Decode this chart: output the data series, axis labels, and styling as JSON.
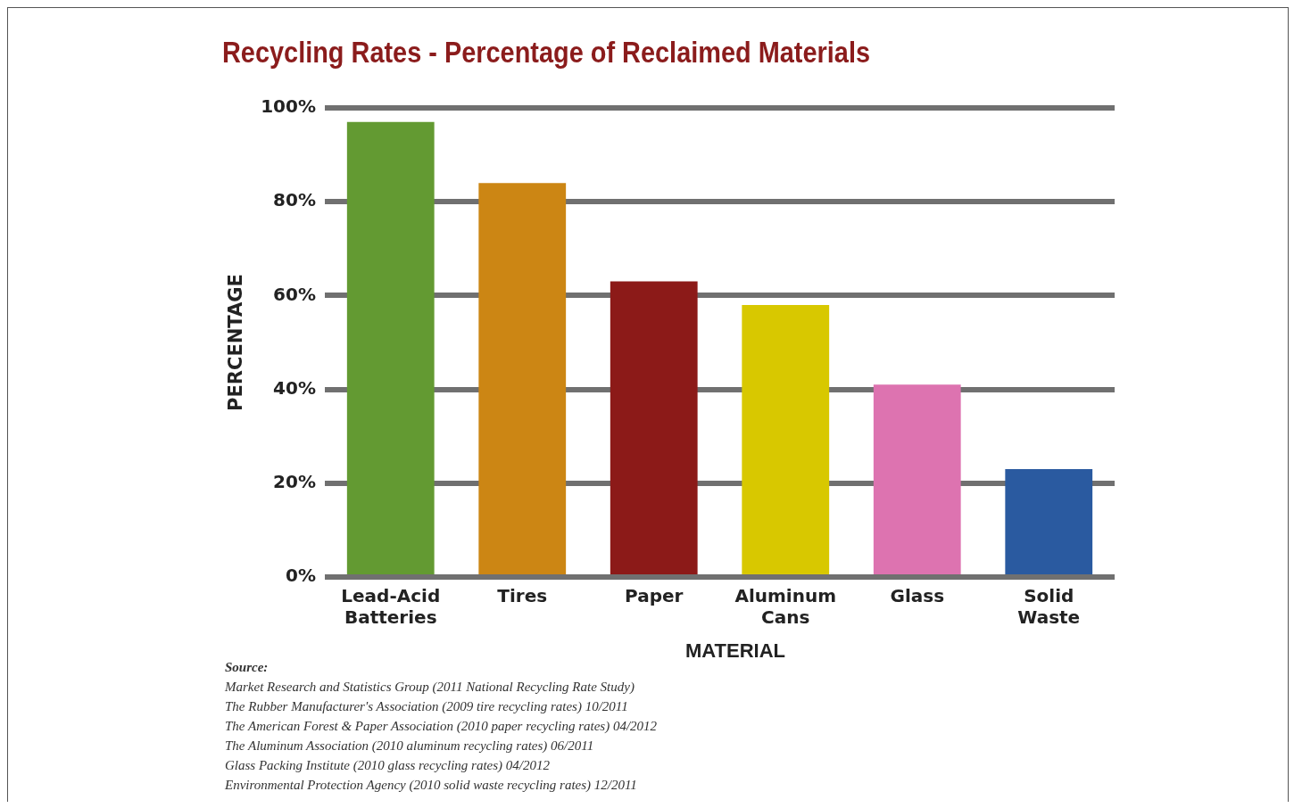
{
  "chart_data": {
    "type": "bar",
    "title": "Recycling Rates - Percentage of Reclaimed Materials",
    "xlabel": "MATERIAL",
    "ylabel": "PERCENTAGE",
    "categories": [
      "Lead-Acid Batteries",
      "Tires",
      "Paper",
      "Aluminum Cans",
      "Glass",
      "Solid Waste"
    ],
    "values": [
      97,
      84,
      63,
      58,
      41,
      23
    ],
    "colors": [
      "#639a32",
      "#cc8614",
      "#8c1a18",
      "#d8c800",
      "#dd73b0",
      "#2a5aa0"
    ],
    "ylim": [
      0,
      100
    ],
    "yticks": [
      {
        "value": 0,
        "label": "0%"
      },
      {
        "value": 20,
        "label": "20%"
      },
      {
        "value": 40,
        "label": "40%"
      },
      {
        "value": 60,
        "label": "60%"
      },
      {
        "value": 80,
        "label": "80%"
      },
      {
        "value": 100,
        "label": "100%"
      }
    ],
    "grid": "y",
    "annotations": [
      "Source:",
      "Market Research and Statistics Group (2011 National Recycling Rate Study)",
      "The Rubber Manufacturer's Association (2009 tire recycling rates) 10/2011",
      "The American Forest & Paper Association (2010 paper recycling rates) 04/2012",
      "The Aluminum Association (2010 aluminum recycling rates) 06/2011",
      "Glass Packing Institute (2010 glass recycling rates) 04/2012",
      "Environmental Protection Agency (2010 solid waste recycling rates) 12/2011"
    ]
  }
}
